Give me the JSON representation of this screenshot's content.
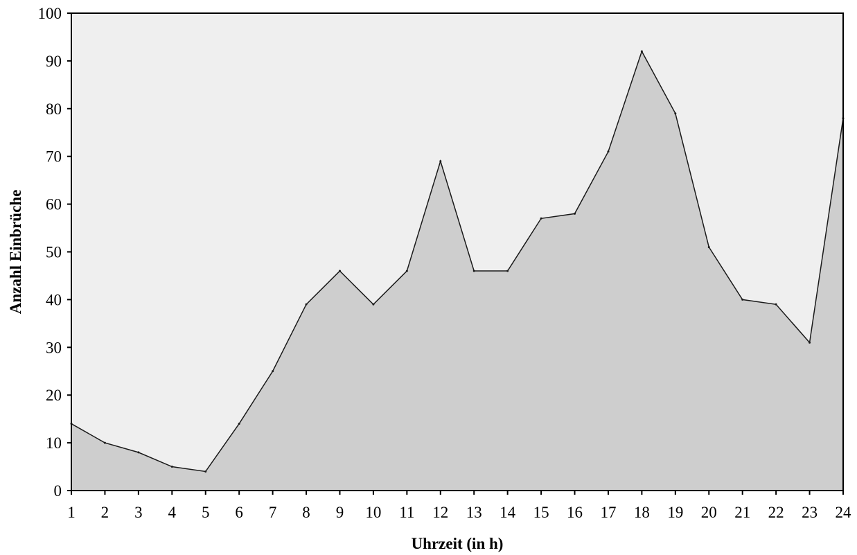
{
  "chart_data": {
    "type": "area",
    "title": "",
    "xlabel": "Uhrzeit (in h)",
    "ylabel": "Anzahl Einbrüche",
    "x": [
      1,
      2,
      3,
      4,
      5,
      6,
      7,
      8,
      9,
      10,
      11,
      12,
      13,
      14,
      15,
      16,
      17,
      18,
      19,
      20,
      21,
      22,
      23,
      24
    ],
    "values": [
      14,
      10,
      8,
      5,
      4,
      14,
      25,
      39,
      46,
      39,
      46,
      69,
      46,
      46,
      57,
      58,
      71,
      92,
      79,
      51,
      40,
      39,
      31,
      78
    ],
    "xlim": [
      1,
      24
    ],
    "ylim": [
      0,
      100
    ],
    "y_ticks": [
      0,
      10,
      20,
      30,
      40,
      50,
      60,
      70,
      80,
      90,
      100
    ],
    "grid": false,
    "legend": "none",
    "colors": {
      "plot_background": "#efefef",
      "area_fill": "#cecece",
      "line": "#1a1a1a",
      "axis": "#000000"
    }
  }
}
